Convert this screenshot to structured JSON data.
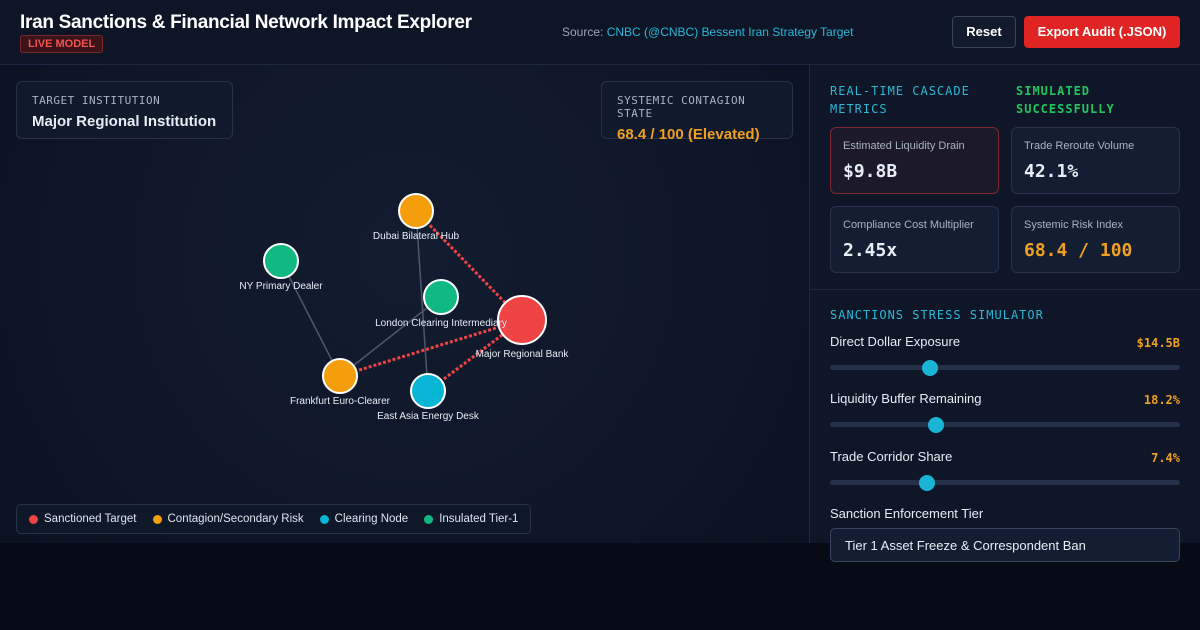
{
  "header": {
    "title": "Iran Sanctions & Financial Network Impact Explorer",
    "badge": "LIVE MODEL",
    "source_label": "Source:",
    "source_link": "CNBC (@CNBC) Bessent Iran Strategy Target",
    "buttons": [
      "Reset",
      "Export Audit (.JSON)"
    ]
  },
  "network": {
    "target_card": {
      "label": "TARGET INSTITUTION",
      "value": "Major Regional Institution"
    },
    "state_card": {
      "label": "SYSTEMIC CONTAGION STATE",
      "value": "68.4 / 100 (Elevated)"
    },
    "nodes": [
      {
        "label": "Dubai Bilateral Hub"
      },
      {
        "label": "NY Primary Dealer"
      },
      {
        "label": "London Clearing Intermediary"
      },
      {
        "label": "Major Regional Bank"
      },
      {
        "label": "Frankfurt Euro-Clearer"
      },
      {
        "label": "East Asia Energy Desk"
      }
    ],
    "legend": [
      "Sanctioned Target",
      "Contagion/Secondary Risk",
      "Clearing Node",
      "Insulated Tier-1"
    ]
  },
  "metrics": {
    "heading": "REAL-TIME CASCADE METRICS",
    "status": "SIMULATED SUCCESSFULLY",
    "cards": [
      {
        "label": "Estimated Liquidity Drain",
        "value": "$9.8B"
      },
      {
        "label": "Trade Reroute Volume",
        "value": "42.1%"
      },
      {
        "label": "Compliance Cost Multiplier",
        "value": "2.45x"
      },
      {
        "label": "Systemic Risk Index",
        "value": "68.4 / 100"
      }
    ]
  },
  "simulator": {
    "heading": "SANCTIONS STRESS SIMULATOR",
    "sliders": [
      {
        "label": "Direct Dollar Exposure",
        "value": "$14.5B"
      },
      {
        "label": "Liquidity Buffer Remaining",
        "value": "18.2%"
      },
      {
        "label": "Trade Corridor Share",
        "value": "7.4%"
      }
    ],
    "select_label": "Sanction Enforcement Tier",
    "select_value": "Tier 1 Asset Freeze & Correspondent Ban"
  }
}
